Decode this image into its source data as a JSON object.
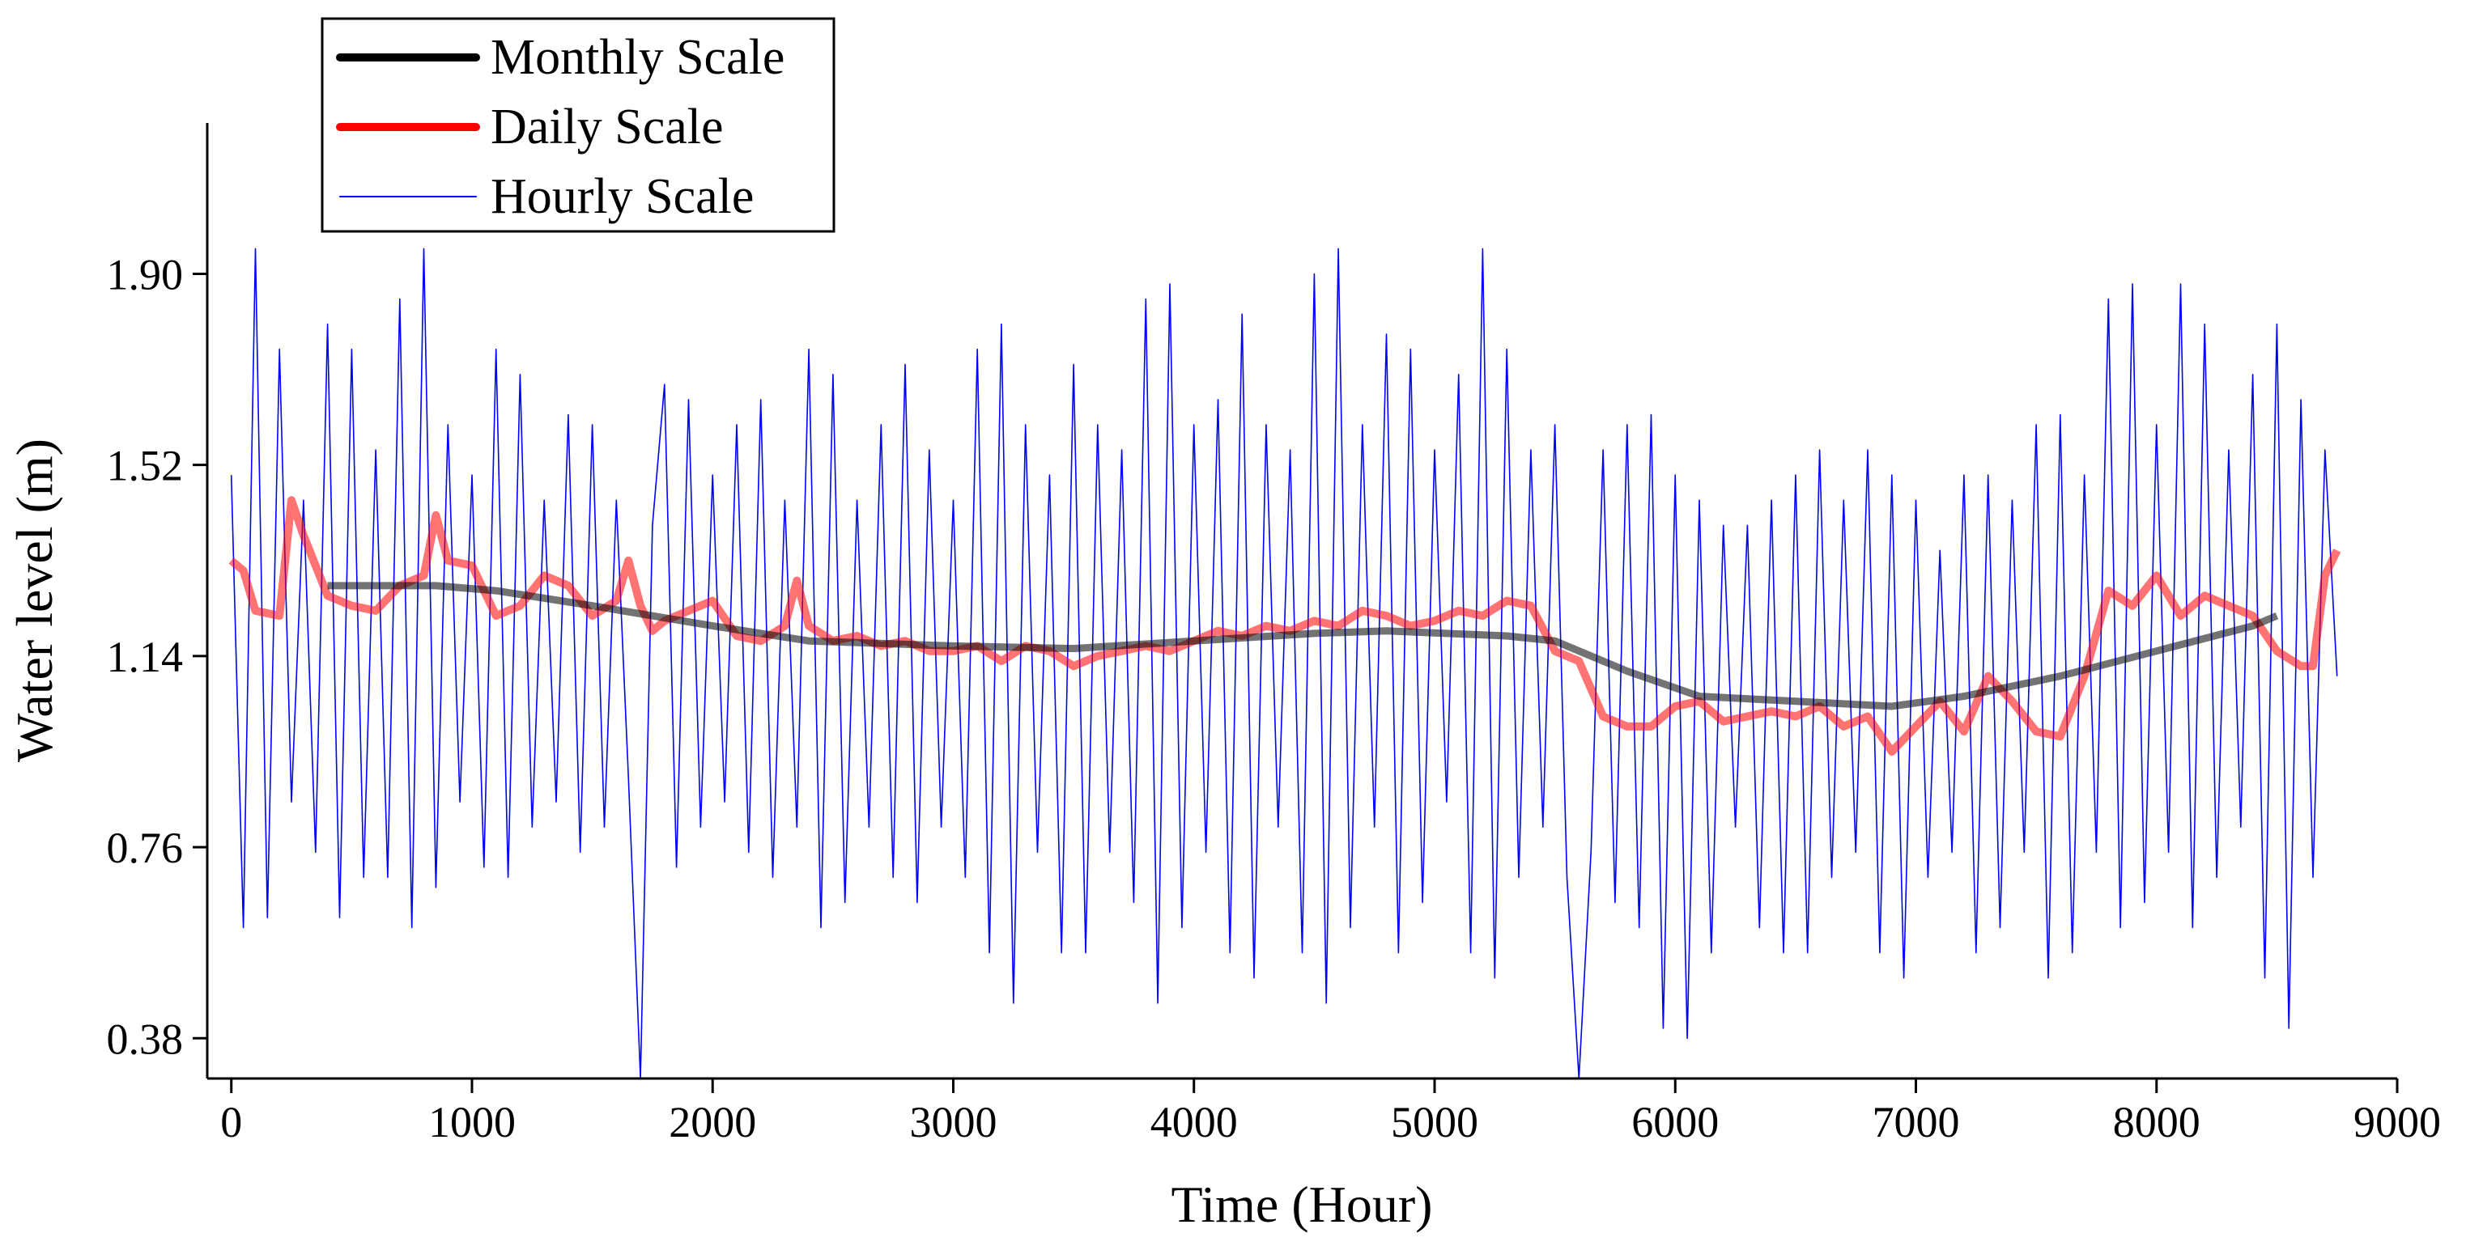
{
  "chart_data": {
    "type": "line",
    "x_label": "Time (Hour)",
    "y_label": "Water level (m)",
    "xlim": [
      -100,
      9000
    ],
    "xticks": [
      0,
      1000,
      2000,
      3000,
      4000,
      5000,
      6000,
      7000,
      8000,
      9000
    ],
    "ylim": [
      0.3,
      2.2
    ],
    "yticks": [
      0.38,
      0.76,
      1.14,
      1.52,
      {
        "value": 1.9,
        "label": "1.90"
      }
    ],
    "legend": "upper left",
    "series": [
      {
        "name": "Monthly Scale",
        "color": "#000000",
        "x": [
          400,
          850,
          1100,
          1500,
          2000,
          2400,
          3000,
          3500,
          4000,
          4500,
          4800,
          5300,
          5500,
          5800,
          6100,
          6500,
          6900,
          7200,
          7600,
          8000,
          8400,
          8500
        ],
        "values": [
          1.28,
          1.28,
          1.27,
          1.24,
          1.2,
          1.17,
          1.16,
          1.155,
          1.17,
          1.185,
          1.19,
          1.18,
          1.17,
          1.11,
          1.06,
          1.05,
          1.04,
          1.06,
          1.1,
          1.15,
          1.2,
          1.22
        ]
      },
      {
        "name": "Daily Scale",
        "color": "#ff0000",
        "x": [
          0,
          50,
          100,
          200,
          250,
          300,
          400,
          500,
          600,
          700,
          800,
          850,
          900,
          1000,
          1100,
          1200,
          1300,
          1400,
          1500,
          1600,
          1650,
          1700,
          1750,
          1800,
          1900,
          2000,
          2100,
          2200,
          2300,
          2350,
          2400,
          2500,
          2600,
          2700,
          2800,
          2900,
          3000,
          3100,
          3200,
          3300,
          3400,
          3500,
          3600,
          3700,
          3800,
          3900,
          4000,
          4100,
          4200,
          4300,
          4400,
          4500,
          4600,
          4700,
          4800,
          4900,
          5000,
          5100,
          5200,
          5300,
          5400,
          5500,
          5600,
          5700,
          5800,
          5900,
          6000,
          6100,
          6200,
          6300,
          6400,
          6500,
          6600,
          6700,
          6800,
          6900,
          7000,
          7100,
          7200,
          7300,
          7400,
          7500,
          7600,
          7700,
          7800,
          7900,
          8000,
          8100,
          8200,
          8300,
          8400,
          8500,
          8600,
          8650,
          8700,
          8750
        ],
        "values": [
          1.33,
          1.31,
          1.23,
          1.22,
          1.45,
          1.38,
          1.26,
          1.24,
          1.23,
          1.28,
          1.3,
          1.42,
          1.33,
          1.32,
          1.22,
          1.24,
          1.3,
          1.28,
          1.22,
          1.25,
          1.33,
          1.24,
          1.19,
          1.21,
          1.23,
          1.25,
          1.18,
          1.17,
          1.2,
          1.29,
          1.2,
          1.17,
          1.18,
          1.16,
          1.17,
          1.15,
          1.15,
          1.16,
          1.13,
          1.16,
          1.15,
          1.12,
          1.14,
          1.15,
          1.16,
          1.15,
          1.17,
          1.19,
          1.18,
          1.2,
          1.19,
          1.21,
          1.2,
          1.23,
          1.22,
          1.2,
          1.21,
          1.23,
          1.22,
          1.25,
          1.24,
          1.15,
          1.13,
          1.02,
          1.0,
          1.0,
          1.04,
          1.05,
          1.01,
          1.02,
          1.03,
          1.02,
          1.04,
          1.0,
          1.02,
          0.95,
          1.0,
          1.05,
          0.99,
          1.1,
          1.05,
          0.99,
          0.98,
          1.1,
          1.27,
          1.24,
          1.3,
          1.22,
          1.26,
          1.24,
          1.22,
          1.15,
          1.12,
          1.12,
          1.3,
          1.35
        ]
      },
      {
        "name": "Hourly Scale",
        "color": "#0000ff",
        "x": [
          0,
          50,
          100,
          150,
          200,
          250,
          300,
          350,
          400,
          450,
          500,
          550,
          600,
          650,
          700,
          750,
          800,
          850,
          900,
          950,
          1000,
          1050,
          1100,
          1150,
          1200,
          1250,
          1300,
          1350,
          1400,
          1450,
          1500,
          1550,
          1600,
          1650,
          1700,
          1750,
          1800,
          1850,
          1900,
          1950,
          2000,
          2050,
          2100,
          2150,
          2200,
          2250,
          2300,
          2350,
          2400,
          2450,
          2500,
          2550,
          2600,
          2650,
          2700,
          2750,
          2800,
          2850,
          2900,
          2950,
          3000,
          3050,
          3100,
          3150,
          3200,
          3250,
          3300,
          3350,
          3400,
          3450,
          3500,
          3550,
          3600,
          3650,
          3700,
          3750,
          3800,
          3850,
          3900,
          3950,
          4000,
          4050,
          4100,
          4150,
          4200,
          4250,
          4300,
          4350,
          4400,
          4450,
          4500,
          4550,
          4600,
          4650,
          4700,
          4750,
          4800,
          4850,
          4900,
          4950,
          5000,
          5050,
          5100,
          5150,
          5200,
          5250,
          5300,
          5350,
          5400,
          5450,
          5500,
          5550,
          5600,
          5650,
          5700,
          5750,
          5800,
          5850,
          5900,
          5950,
          6000,
          6050,
          6100,
          6150,
          6200,
          6250,
          6300,
          6350,
          6400,
          6450,
          6500,
          6550,
          6600,
          6650,
          6700,
          6750,
          6800,
          6850,
          6900,
          6950,
          7000,
          7050,
          7100,
          7150,
          7200,
          7250,
          7300,
          7350,
          7400,
          7450,
          7500,
          7550,
          7600,
          7650,
          7700,
          7750,
          7800,
          7850,
          7900,
          7950,
          8000,
          8050,
          8100,
          8150,
          8200,
          8250,
          8300,
          8350,
          8400,
          8450,
          8500,
          8550,
          8600,
          8650,
          8700,
          8750
        ],
        "values": [
          1.5,
          0.6,
          1.95,
          0.62,
          1.75,
          0.85,
          1.45,
          0.75,
          1.8,
          0.62,
          1.75,
          0.7,
          1.55,
          0.7,
          1.85,
          0.6,
          1.95,
          0.68,
          1.6,
          0.85,
          1.5,
          0.72,
          1.75,
          0.7,
          1.7,
          0.8,
          1.45,
          0.85,
          1.62,
          0.75,
          1.6,
          0.8,
          1.45,
          0.9,
          0.3,
          1.4,
          1.68,
          0.72,
          1.65,
          0.8,
          1.5,
          0.85,
          1.6,
          0.75,
          1.65,
          0.7,
          1.45,
          0.8,
          1.75,
          0.6,
          1.7,
          0.65,
          1.45,
          0.8,
          1.6,
          0.7,
          1.72,
          0.65,
          1.55,
          0.8,
          1.45,
          0.7,
          1.75,
          0.55,
          1.8,
          0.45,
          1.6,
          0.75,
          1.5,
          0.55,
          1.72,
          0.55,
          1.6,
          0.75,
          1.55,
          0.65,
          1.85,
          0.45,
          1.88,
          0.6,
          1.6,
          0.75,
          1.65,
          0.55,
          1.82,
          0.5,
          1.6,
          0.8,
          1.55,
          0.55,
          1.9,
          0.45,
          1.95,
          0.6,
          1.6,
          0.8,
          1.78,
          0.55,
          1.75,
          0.65,
          1.55,
          0.85,
          1.7,
          0.55,
          1.95,
          0.5,
          1.75,
          0.7,
          1.55,
          0.8,
          1.6,
          0.7,
          0.3,
          0.75,
          1.55,
          0.65,
          1.6,
          0.6,
          1.62,
          0.4,
          1.5,
          0.38,
          1.45,
          0.55,
          1.4,
          0.8,
          1.4,
          0.6,
          1.45,
          0.55,
          1.5,
          0.55,
          1.55,
          0.7,
          1.45,
          0.75,
          1.55,
          0.55,
          1.5,
          0.5,
          1.45,
          0.7,
          1.35,
          0.75,
          1.5,
          0.55,
          1.5,
          0.6,
          1.45,
          0.75,
          1.6,
          0.5,
          1.62,
          0.55,
          1.5,
          0.75,
          1.85,
          0.6,
          1.88,
          0.65,
          1.6,
          0.75,
          1.88,
          0.6,
          1.8,
          0.7,
          1.55,
          0.8,
          1.7,
          0.5,
          1.8,
          0.4,
          1.65,
          0.7,
          1.55,
          1.1
        ]
      }
    ]
  }
}
